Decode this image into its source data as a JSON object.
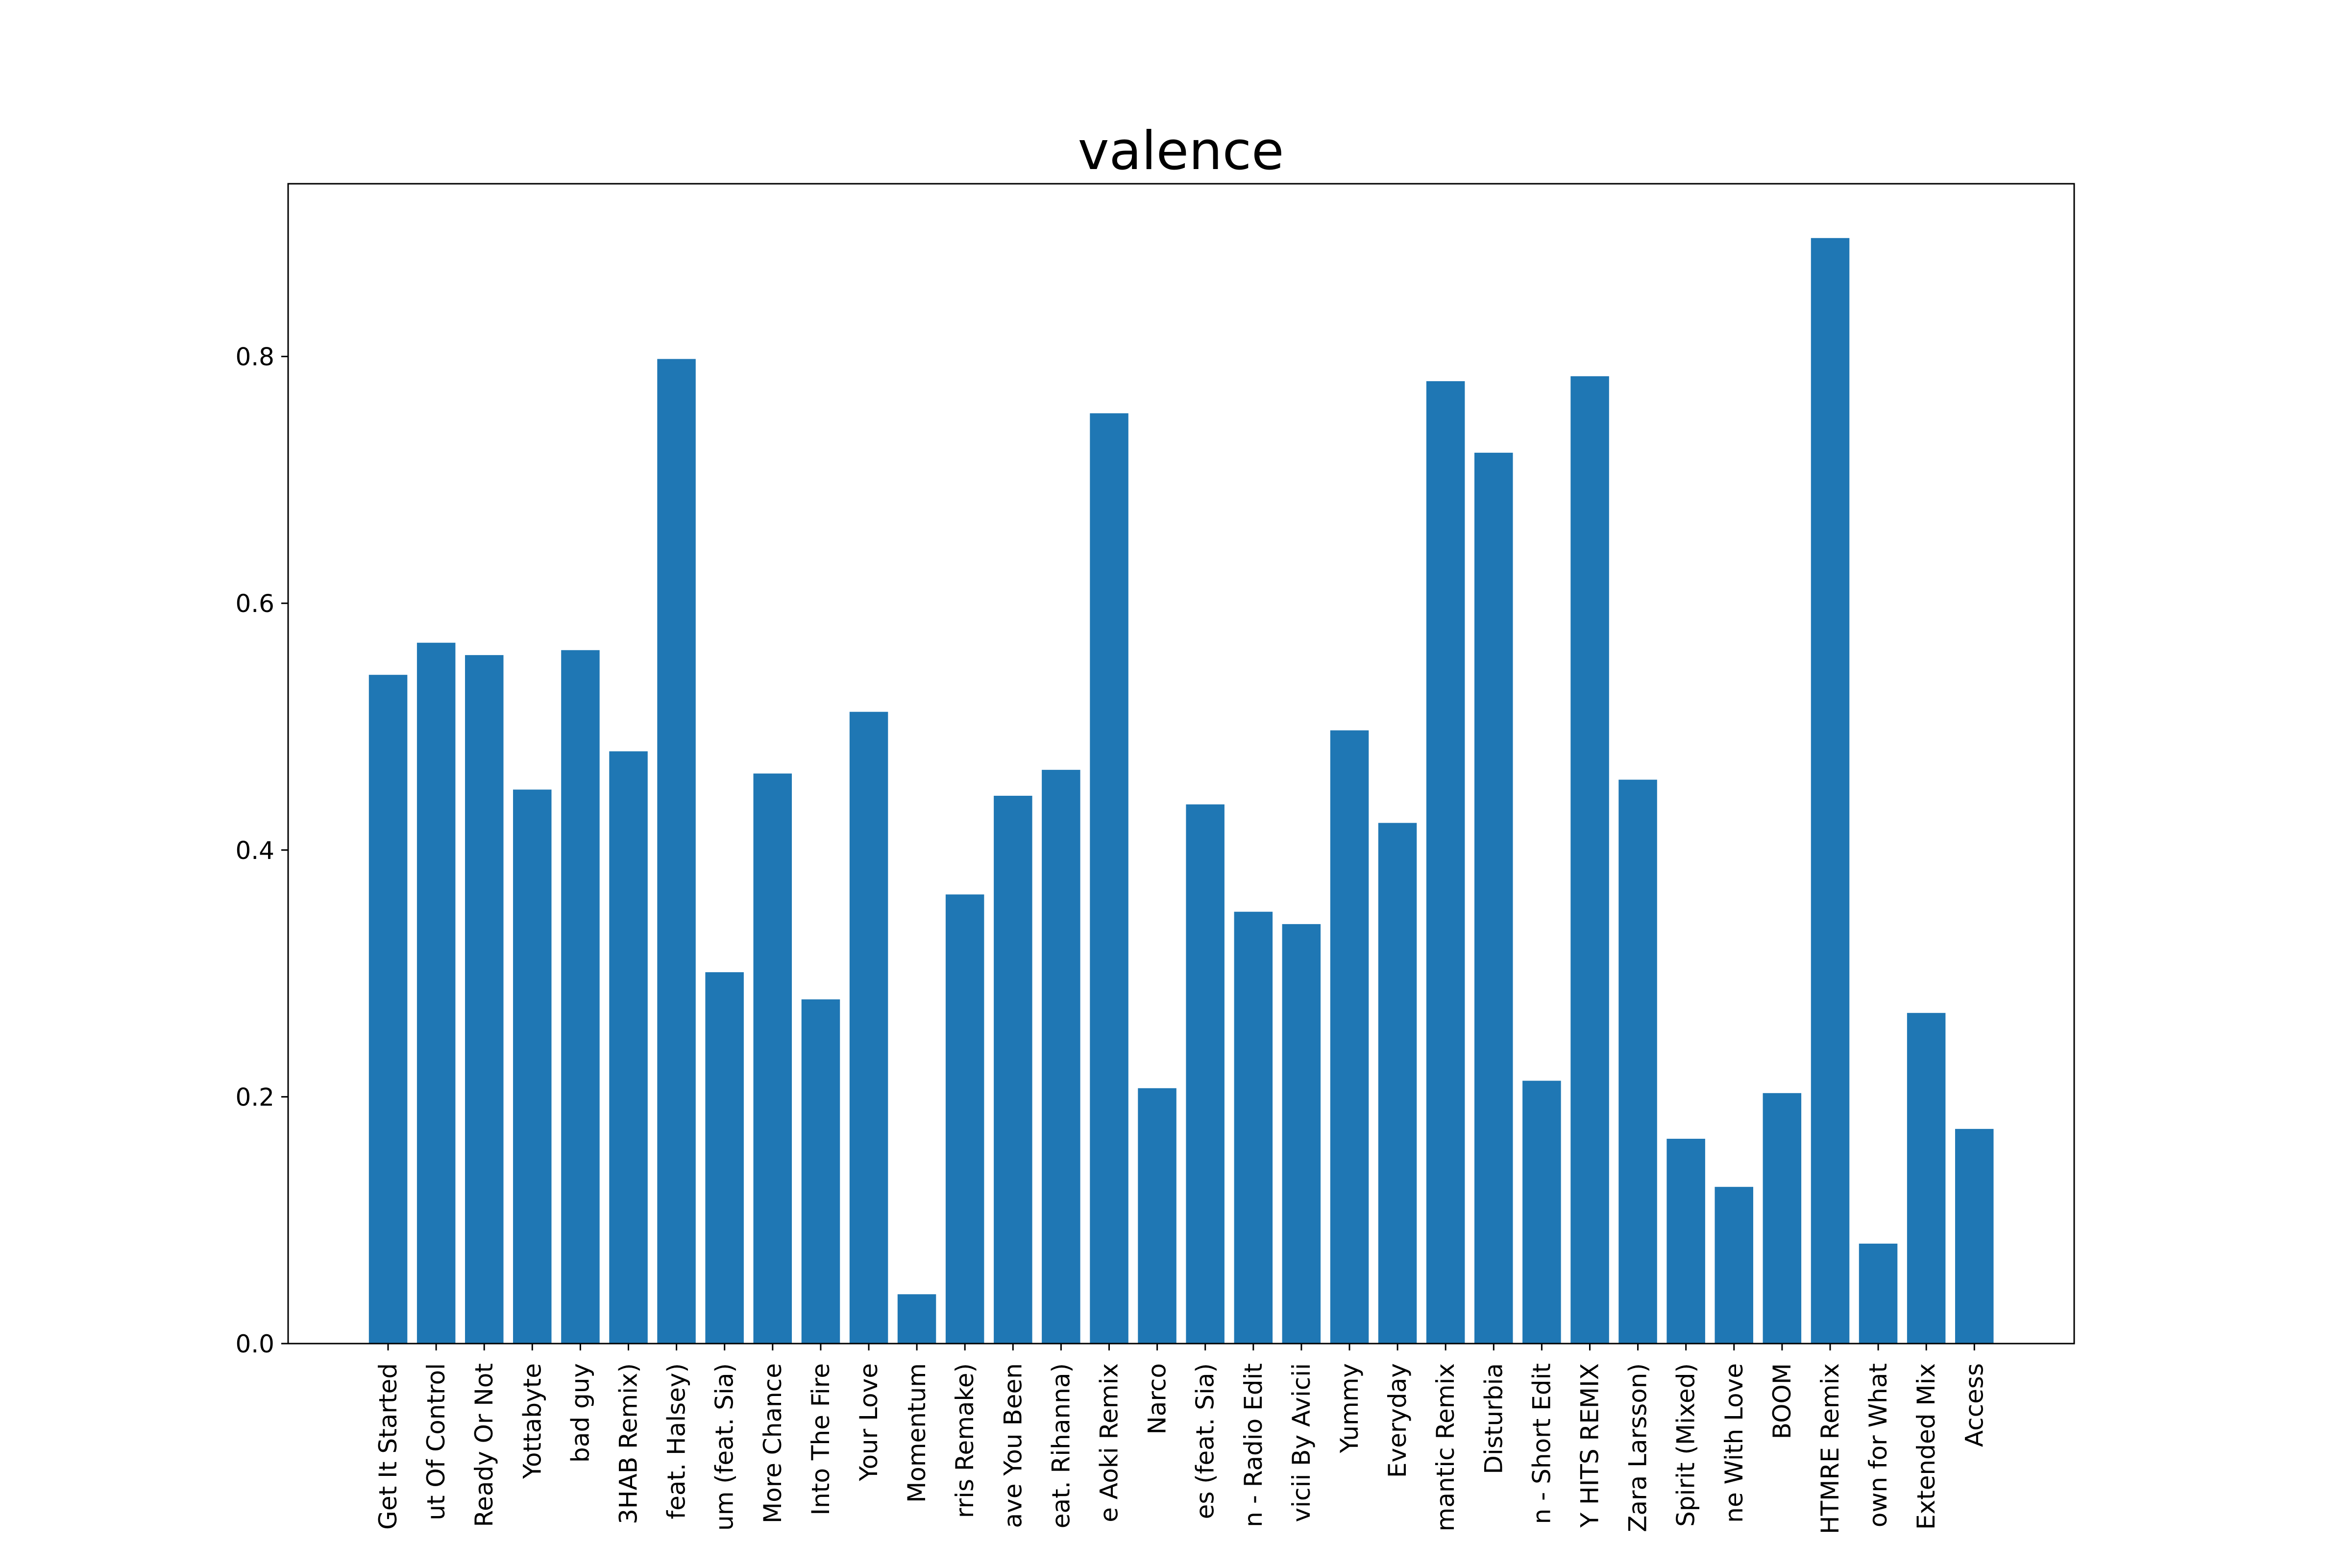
{
  "chart_data": {
    "type": "bar",
    "title": "valence",
    "xlabel": "",
    "ylabel": "",
    "ylim": [
      0,
      0.94
    ],
    "yticks": [
      "0.0",
      "0.2",
      "0.4",
      "0.6",
      "0.8"
    ],
    "ytick_values": [
      0.0,
      0.2,
      0.4,
      0.6,
      0.8
    ],
    "grid": false,
    "bar_color": "#1f77b4",
    "categories": [
      "Get It Started",
      "ut Of Control",
      "Ready Or Not",
      "Yottabyte",
      "bad guy",
      "3HAB Remix)",
      "feat. Halsey)",
      "um (feat. Sia)",
      "More Chance",
      "Into The Fire",
      "Your Love",
      "Momentum",
      "rris Remake)",
      "ave You Been",
      "eat. Rihanna)",
      "e Aoki Remix",
      "Narco",
      "es (feat. Sia)",
      "n - Radio Edit",
      "vicii By Avicii",
      "Yummy",
      "Everyday",
      "mantic Remix",
      "Disturbia",
      "n - Short Edit",
      "Y HITS REMIX",
      "Zara Larsson)",
      "Spirit (Mixed)",
      "ne With Love",
      "BOOM",
      "HTMRE Remix",
      "own for What",
      "Extended Mix",
      "Access"
    ],
    "values": [
      0.542,
      0.568,
      0.558,
      0.449,
      0.562,
      0.48,
      0.798,
      0.301,
      0.462,
      0.279,
      0.512,
      0.04,
      0.364,
      0.444,
      0.465,
      0.754,
      0.207,
      0.437,
      0.35,
      0.34,
      0.497,
      0.422,
      0.78,
      0.722,
      0.213,
      0.784,
      0.457,
      0.166,
      0.127,
      0.203,
      0.896,
      0.081,
      0.268,
      0.174
    ]
  }
}
